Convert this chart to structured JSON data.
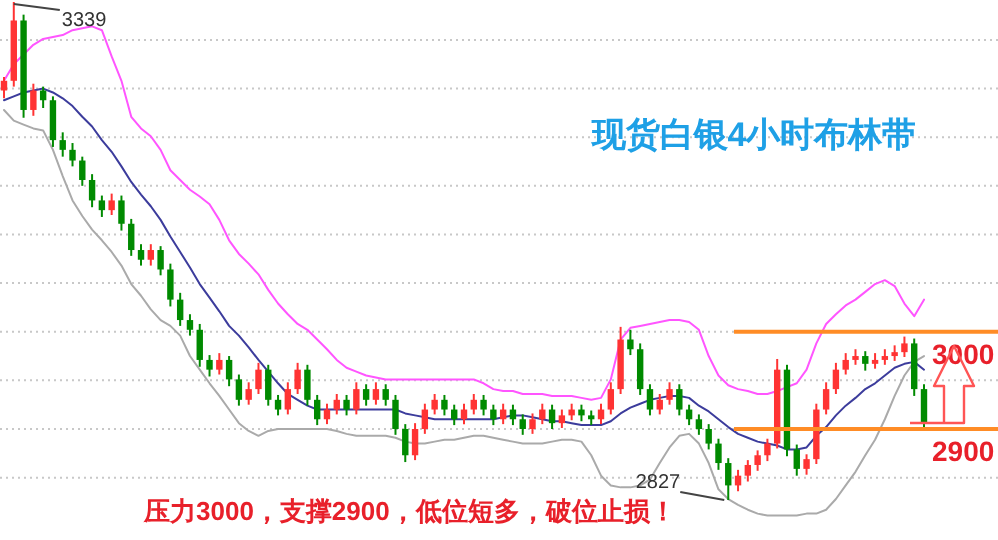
{
  "chart_data": {
    "type": "candlestick",
    "title": "现货白银4小时布林带",
    "annotations": [
      "3339",
      "2827",
      "压力3000，支撑2900，低位短多，破位止损！"
    ],
    "categories": [
      null,
      null,
      null,
      null,
      null,
      null,
      null,
      null,
      null,
      null,
      null,
      null,
      null,
      null,
      null,
      null,
      null,
      null,
      null,
      null,
      null,
      null,
      null,
      null,
      null,
      null,
      null,
      null,
      null,
      null,
      null,
      null,
      null,
      null,
      null,
      null,
      null,
      null,
      null,
      null,
      null,
      null,
      null,
      null,
      null,
      null,
      null,
      null,
      null,
      null,
      null,
      null,
      null,
      null,
      null,
      null,
      null,
      null,
      null,
      null,
      null,
      null,
      null,
      null,
      null,
      null,
      null,
      null,
      null,
      null,
      null,
      null,
      null,
      null,
      null,
      null,
      null,
      null,
      null,
      null,
      null,
      null,
      null,
      null,
      null,
      null,
      null,
      null,
      null,
      null,
      null,
      null,
      null,
      null,
      null
    ],
    "colors": [
      "#ff3333",
      "#ff3333",
      "#008a00",
      "#ff3333",
      "#008a00",
      "#008a00",
      "#008a00",
      "#008a00",
      "#008a00",
      "#008a00",
      "#008a00",
      "#ff3333",
      "#008a00",
      "#008a00",
      "#008a00",
      "#ff3333",
      "#008a00",
      "#008a00",
      "#008a00",
      "#008a00",
      "#008a00",
      "#008a00",
      "#ff3333",
      "#008a00",
      "#008a00",
      "#ff3333",
      "#ff3333",
      "#008a00",
      "#008a00",
      "#ff3333",
      "#ff3333",
      "#008a00",
      "#008a00",
      "#ff3333",
      "#ff3333",
      "#008a00",
      "#ff3333",
      "#008a00",
      "#ff3333",
      "#008a00",
      "#008a00",
      "#008a00",
      "#ff3333",
      "#ff3333",
      "#ff3333",
      "#008a00",
      "#008a00",
      "#ff3333",
      "#ff3333",
      "#008a00",
      "#008a00",
      "#ff3333",
      "#008a00",
      "#008a00",
      "#ff3333",
      "#ff3333",
      "#008a00",
      "#ff3333",
      "#ff3333",
      "#008a00",
      "#008a00",
      "#ff3333",
      "#ff3333",
      "#ff3333",
      "#008a00",
      "#008a00",
      "#008a00",
      "#ff3333",
      "#ff3333",
      "#008a00",
      "#008a00",
      "#008a00",
      "#008a00",
      "#008a00",
      "#008a00",
      "#ff3333",
      "#ff3333",
      "#ff3333",
      "#ff3333",
      "#ff3333",
      "#008a00",
      "#008a00",
      "#ff3333",
      "#ff3333",
      "#ff3333",
      "#ff3333",
      "#ff3333",
      "#ff3333",
      "#008a00",
      "#ff3333",
      "#ff3333",
      "#ff3333",
      "#ff3333",
      "#008a00",
      "#008a00"
    ],
    "ohlc": [
      [
        3248,
        3262,
        3240,
        3258
      ],
      [
        3258,
        3339,
        3252,
        3320
      ],
      [
        3320,
        3326,
        3220,
        3228
      ],
      [
        3228,
        3255,
        3222,
        3248
      ],
      [
        3248,
        3252,
        3230,
        3238
      ],
      [
        3238,
        3242,
        3190,
        3197
      ],
      [
        3197,
        3205,
        3180,
        3187
      ],
      [
        3187,
        3194,
        3170,
        3176
      ],
      [
        3176,
        3180,
        3150,
        3156
      ],
      [
        3156,
        3162,
        3128,
        3135
      ],
      [
        3135,
        3140,
        3118,
        3125
      ],
      [
        3125,
        3142,
        3120,
        3135
      ],
      [
        3135,
        3140,
        3104,
        3111
      ],
      [
        3111,
        3116,
        3078,
        3084
      ],
      [
        3084,
        3090,
        3068,
        3074
      ],
      [
        3074,
        3090,
        3068,
        3084
      ],
      [
        3084,
        3088,
        3058,
        3064
      ],
      [
        3064,
        3070,
        3026,
        3033
      ],
      [
        3033,
        3040,
        3006,
        3012
      ],
      [
        3012,
        3018,
        2996,
        3002
      ],
      [
        3002,
        3008,
        2964,
        2971
      ],
      [
        2971,
        2976,
        2954,
        2961
      ],
      [
        2961,
        2978,
        2956,
        2971
      ],
      [
        2971,
        2975,
        2944,
        2951
      ],
      [
        2951,
        2956,
        2924,
        2930
      ],
      [
        2930,
        2948,
        2925,
        2941
      ],
      [
        2941,
        2968,
        2936,
        2961
      ],
      [
        2961,
        2966,
        2924,
        2930
      ],
      [
        2930,
        2935,
        2914,
        2920
      ],
      [
        2920,
        2948,
        2915,
        2941
      ],
      [
        2941,
        2968,
        2936,
        2961
      ],
      [
        2961,
        2966,
        2924,
        2930
      ],
      [
        2930,
        2935,
        2904,
        2910
      ],
      [
        2910,
        2926,
        2905,
        2920
      ],
      [
        2920,
        2936,
        2915,
        2930
      ],
      [
        2930,
        2935,
        2914,
        2920
      ],
      [
        2920,
        2948,
        2915,
        2941
      ],
      [
        2941,
        2946,
        2924,
        2930
      ],
      [
        2930,
        2948,
        2925,
        2941
      ],
      [
        2941,
        2946,
        2924,
        2930
      ],
      [
        2930,
        2935,
        2894,
        2900
      ],
      [
        2900,
        2905,
        2866,
        2873
      ],
      [
        2873,
        2906,
        2868,
        2900
      ],
      [
        2900,
        2926,
        2895,
        2920
      ],
      [
        2920,
        2936,
        2915,
        2930
      ],
      [
        2930,
        2935,
        2914,
        2920
      ],
      [
        2920,
        2925,
        2904,
        2910
      ],
      [
        2910,
        2926,
        2905,
        2920
      ],
      [
        2920,
        2936,
        2915,
        2930
      ],
      [
        2930,
        2935,
        2914,
        2920
      ],
      [
        2920,
        2925,
        2904,
        2910
      ],
      [
        2910,
        2926,
        2905,
        2920
      ],
      [
        2920,
        2925,
        2904,
        2910
      ],
      [
        2910,
        2915,
        2894,
        2900
      ],
      [
        2900,
        2916,
        2895,
        2910
      ],
      [
        2910,
        2926,
        2905,
        2920
      ],
      [
        2920,
        2925,
        2900,
        2906
      ],
      [
        2906,
        2920,
        2901,
        2914
      ],
      [
        2914,
        2926,
        2909,
        2920
      ],
      [
        2920,
        2925,
        2908,
        2914
      ],
      [
        2914,
        2919,
        2904,
        2910
      ],
      [
        2910,
        2926,
        2905,
        2920
      ],
      [
        2920,
        2948,
        2915,
        2941
      ],
      [
        2941,
        3005,
        2936,
        2992
      ],
      [
        2992,
        3002,
        2976,
        2982
      ],
      [
        2982,
        2988,
        2935,
        2941
      ],
      [
        2941,
        2946,
        2914,
        2920
      ],
      [
        2920,
        2936,
        2915,
        2930
      ],
      [
        2930,
        2948,
        2925,
        2941
      ],
      [
        2941,
        2946,
        2914,
        2920
      ],
      [
        2920,
        2925,
        2904,
        2910
      ],
      [
        2910,
        2915,
        2894,
        2900
      ],
      [
        2900,
        2905,
        2879,
        2885
      ],
      [
        2885,
        2890,
        2858,
        2865
      ],
      [
        2865,
        2870,
        2827,
        2842
      ],
      [
        2842,
        2858,
        2836,
        2852
      ],
      [
        2852,
        2868,
        2846,
        2863
      ],
      [
        2863,
        2878,
        2857,
        2873
      ],
      [
        2873,
        2890,
        2867,
        2885
      ],
      [
        2885,
        2972,
        2880,
        2961
      ],
      [
        2961,
        2966,
        2872,
        2879
      ],
      [
        2879,
        2884,
        2852,
        2859
      ],
      [
        2859,
        2874,
        2853,
        2869
      ],
      [
        2869,
        2926,
        2864,
        2920
      ],
      [
        2920,
        2948,
        2915,
        2941
      ],
      [
        2941,
        2968,
        2936,
        2961
      ],
      [
        2961,
        2978,
        2956,
        2971
      ],
      [
        2971,
        2982,
        2966,
        2975
      ],
      [
        2975,
        2980,
        2960,
        2967
      ],
      [
        2967,
        2978,
        2962,
        2971
      ],
      [
        2971,
        2982,
        2966,
        2975
      ],
      [
        2975,
        2986,
        2970,
        2979
      ],
      [
        2979,
        2995,
        2974,
        2988
      ],
      [
        2988,
        2993,
        2934,
        2941
      ],
      [
        2941,
        2946,
        2900,
        2906
      ]
    ],
    "series": [
      {
        "type": "line",
        "color": "#ff55ff",
        "values": [
          3258,
          3275,
          3285,
          3295,
          3301,
          3303,
          3305,
          3310,
          3312,
          3314,
          3310,
          3283,
          3258,
          3221,
          3209,
          3201,
          3187,
          3166,
          3156,
          3146,
          3139,
          3131,
          3115,
          3094,
          3080,
          3070,
          3059,
          3043,
          3029,
          3018,
          3008,
          3002,
          2992,
          2982,
          2971,
          2963,
          2959,
          2955,
          2953,
          2951,
          2951,
          2951,
          2951,
          2951,
          2951,
          2951,
          2951,
          2951,
          2951,
          2947,
          2941,
          2939,
          2939,
          2936,
          2936,
          2936,
          2934,
          2934,
          2934,
          2932,
          2930,
          2932,
          2951,
          2992,
          3004,
          3006,
          3008,
          3010,
          3012,
          3012,
          3010,
          3002,
          2975,
          2955,
          2945,
          2941,
          2939,
          2936,
          2936,
          2939,
          2943,
          2947,
          2961,
          2988,
          3008,
          3018,
          3027,
          3033,
          3041,
          3049,
          3053,
          3047,
          3029,
          3016,
          3033
        ]
      },
      {
        "type": "line",
        "color": "#3c3c9c",
        "values": [
          3238,
          3242,
          3246,
          3248,
          3250,
          3246,
          3240,
          3232,
          3221,
          3211,
          3197,
          3185,
          3170,
          3154,
          3141,
          3129,
          3115,
          3098,
          3082,
          3066,
          3049,
          3035,
          3021,
          3006,
          2996,
          2984,
          2971,
          2959,
          2947,
          2936,
          2930,
          2924,
          2920,
          2920,
          2920,
          2920,
          2920,
          2920,
          2920,
          2920,
          2920,
          2916,
          2914,
          2912,
          2910,
          2910,
          2910,
          2910,
          2910,
          2910,
          2910,
          2912,
          2914,
          2914,
          2912,
          2910,
          2908,
          2908,
          2906,
          2904,
          2904,
          2904,
          2908,
          2916,
          2922,
          2926,
          2930,
          2932,
          2934,
          2934,
          2932,
          2924,
          2918,
          2910,
          2902,
          2895,
          2891,
          2887,
          2885,
          2883,
          2879,
          2879,
          2881,
          2893,
          2902,
          2914,
          2924,
          2932,
          2941,
          2947,
          2955,
          2963,
          2967,
          2969,
          2961
        ]
      },
      {
        "type": "line",
        "color": "#aaaaaa",
        "values": [
          3228,
          3217,
          3213,
          3209,
          3207,
          3187,
          3160,
          3135,
          3119,
          3105,
          3094,
          3082,
          3068,
          3049,
          3037,
          3023,
          3012,
          3006,
          2996,
          2975,
          2961,
          2947,
          2934,
          2920,
          2906,
          2898,
          2893,
          2898,
          2900,
          2900,
          2900,
          2900,
          2900,
          2900,
          2898,
          2895,
          2893,
          2893,
          2893,
          2893,
          2891,
          2887,
          2885,
          2885,
          2887,
          2889,
          2889,
          2891,
          2893,
          2893,
          2891,
          2889,
          2887,
          2885,
          2885,
          2885,
          2887,
          2889,
          2889,
          2887,
          2873,
          2852,
          2842,
          2840,
          2840,
          2842,
          2848,
          2865,
          2881,
          2893,
          2895,
          2885,
          2865,
          2838,
          2828,
          2822,
          2817,
          2813,
          2811,
          2811,
          2811,
          2811,
          2813,
          2813,
          2817,
          2828,
          2842,
          2856,
          2873,
          2889,
          2910,
          2934,
          2955,
          2969,
          2975
        ]
      }
    ],
    "yticks": [
      {
        "value": 2850,
        "label": null
      },
      {
        "value": 2900,
        "label": null
      },
      {
        "value": 2950,
        "label": null
      },
      {
        "value": 3000,
        "label": null
      },
      {
        "value": 3050,
        "label": null
      },
      {
        "value": 3100,
        "label": null
      },
      {
        "value": 3150,
        "label": null
      },
      {
        "value": 3200,
        "label": null
      },
      {
        "value": 3250,
        "label": null
      },
      {
        "value": 3300,
        "label": null
      }
    ],
    "grid": "y",
    "ref_lines": [
      {
        "axis": "y",
        "value": 3000,
        "label": "3000",
        "color": "#ff8c26"
      },
      {
        "axis": "y",
        "value": 2900,
        "label": "2900",
        "color": "#ff8c26"
      }
    ]
  }
}
